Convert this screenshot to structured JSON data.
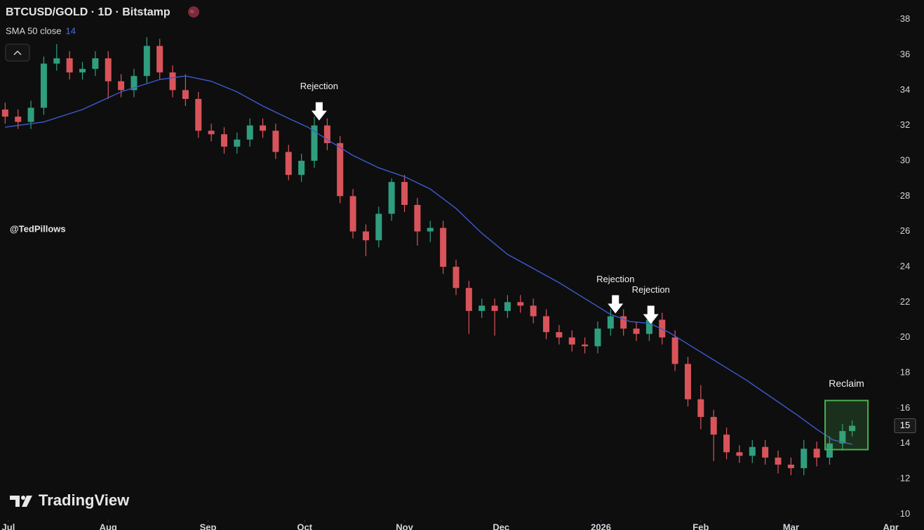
{
  "chart_data": {
    "type": "candlestick",
    "title": "BTCUSD/GOLD · 1D · Bitstamp",
    "watermark": "@TedPillows",
    "brand": "TradingView",
    "up_color": "#2f9e7e",
    "down_color": "#d9545a",
    "xlim": [
      -2.6,
      270.8
    ],
    "ylim": [
      9.1,
      39.1
    ],
    "yticks": [
      10,
      12,
      14,
      16,
      18,
      20,
      22,
      24,
      26,
      28,
      30,
      32,
      34,
      36,
      38
    ],
    "xticks": [
      {
        "value": 0,
        "label": "Jul"
      },
      {
        "value": 31,
        "label": "Aug"
      },
      {
        "value": 62,
        "label": "Sep"
      },
      {
        "value": 92,
        "label": "Oct"
      },
      {
        "value": 123,
        "label": "Nov"
      },
      {
        "value": 153,
        "label": "Dec"
      },
      {
        "value": 184,
        "label": "2026"
      },
      {
        "value": 215,
        "label": "Feb"
      },
      {
        "value": 243,
        "label": "Mar"
      },
      {
        "value": 274,
        "label": "Apr"
      }
    ],
    "last_price": 15,
    "x": [
      -1,
      3,
      7,
      11,
      15,
      19,
      23,
      27,
      31,
      35,
      39,
      43,
      47,
      51,
      55,
      59,
      63,
      67,
      71,
      75,
      79,
      83,
      87,
      91,
      95,
      99,
      103,
      107,
      111,
      115,
      119,
      123,
      127,
      131,
      135,
      139,
      143,
      147,
      151,
      155,
      159,
      163,
      167,
      171,
      175,
      179,
      183,
      187,
      191,
      195,
      199,
      203,
      207,
      211,
      215,
      219,
      223,
      227,
      231,
      235,
      239,
      243,
      247,
      251,
      255,
      259,
      262
    ],
    "open": [
      32.9,
      32.5,
      32.2,
      33,
      35.5,
      35.8,
      35,
      35.2,
      35.8,
      34.5,
      34,
      34.8,
      36.5,
      35,
      34,
      33.5,
      31.7,
      31.5,
      30.8,
      31.2,
      32,
      31.7,
      30.5,
      29.2,
      30,
      32,
      31,
      28,
      26,
      25.5,
      27,
      28.8,
      27.5,
      26,
      26.2,
      24,
      22.8,
      21.5,
      21.8,
      21.5,
      22,
      21.8,
      21.2,
      20.3,
      20,
      19.6,
      19.5,
      20.5,
      21.2,
      20.5,
      20.2,
      21,
      20,
      18.5,
      16.5,
      15.5,
      14.5,
      13.5,
      13.3,
      13.8,
      13.2,
      12.8,
      12.6,
      13.7,
      13.2,
      14,
      14.7
    ],
    "high": [
      33.3,
      32.9,
      33.4,
      35.9,
      36.6,
      36.2,
      35.6,
      36.2,
      36.2,
      34.9,
      35.2,
      37,
      36.9,
      35.4,
      34.9,
      33.9,
      32.1,
      31.9,
      31.6,
      32.4,
      32.4,
      32.1,
      30.9,
      30.4,
      32.5,
      32.4,
      31.4,
      28.4,
      26.4,
      27.4,
      29,
      29.2,
      27.9,
      26.6,
      26.6,
      24.4,
      23.2,
      22.2,
      22.2,
      22.4,
      22.4,
      22.2,
      21.6,
      20.7,
      20.4,
      20,
      20.9,
      21.6,
      21.6,
      20.9,
      21.4,
      21.4,
      20.4,
      18.9,
      17.3,
      15.9,
      14.9,
      13.9,
      14.2,
      14.2,
      13.6,
      13.2,
      14.2,
      14.1,
      14.4,
      15.1,
      15.3
    ],
    "low": [
      32.1,
      31.8,
      31.8,
      32.6,
      35.1,
      34.6,
      34.6,
      34.8,
      33.5,
      33.6,
      33.6,
      34.4,
      34.6,
      33.6,
      33.1,
      31.3,
      31.1,
      30.4,
      30.4,
      30.8,
      31.3,
      30.1,
      28.9,
      28.8,
      29.6,
      30.6,
      27.6,
      25.6,
      24.6,
      25.1,
      26.6,
      27.1,
      25.2,
      25.4,
      23.6,
      22.4,
      20.2,
      21.1,
      20.1,
      21.1,
      21.4,
      20.8,
      19.9,
      19.6,
      19.2,
      19.1,
      19.1,
      20.1,
      20.1,
      19.8,
      19.8,
      19.6,
      18.1,
      16.1,
      14.8,
      13,
      13.1,
      12.9,
      12.9,
      12.8,
      12.3,
      12.2,
      12.2,
      12.7,
      12.8,
      13.6,
      14.4
    ],
    "close": [
      32.5,
      32.2,
      33,
      35.5,
      35.8,
      35,
      35.2,
      35.8,
      34.5,
      34,
      34.8,
      36.5,
      35,
      34,
      33.5,
      31.7,
      31.5,
      30.8,
      31.2,
      32,
      31.7,
      30.5,
      29.2,
      30,
      32,
      31,
      28,
      26,
      25.5,
      27,
      28.8,
      27.5,
      26,
      26.2,
      24,
      22.8,
      21.5,
      21.8,
      21.5,
      22,
      21.8,
      21.2,
      20.3,
      20,
      19.6,
      19.5,
      20.5,
      21.2,
      20.5,
      20.2,
      21,
      20,
      18.5,
      16.5,
      15.5,
      14.5,
      13.5,
      13.3,
      13.8,
      13.2,
      12.8,
      12.6,
      13.7,
      13.2,
      14,
      14.7,
      15
    ],
    "sma": {
      "name": "SMA 50 close",
      "last_value": 14,
      "color": "#3b5bd0",
      "x": [
        -1,
        11,
        23,
        35,
        47,
        55,
        63,
        71,
        79,
        87,
        93,
        99,
        107,
        115,
        123,
        131,
        139,
        147,
        155,
        163,
        171,
        179,
        187,
        193,
        199,
        205,
        213,
        221,
        229,
        237,
        245,
        251,
        256,
        262
      ],
      "values": [
        31.9,
        32.2,
        32.9,
        33.9,
        34.6,
        34.8,
        34.5,
        33.9,
        33.1,
        32.4,
        31.9,
        31.2,
        30.3,
        29.6,
        29.1,
        28.4,
        27.3,
        25.9,
        24.7,
        23.9,
        23.1,
        22.2,
        21.3,
        20.9,
        20.8,
        20.3,
        19.4,
        18.5,
        17.6,
        16.6,
        15.6,
        14.8,
        14.2,
        13.95
      ]
    },
    "annotations": [
      {
        "text": "Rejection",
        "x": 96.5,
        "y": 32.28
      },
      {
        "text": "Rejection",
        "x": 188.5,
        "y": 21.36
      },
      {
        "text": "Rejection",
        "x": 199.5,
        "y": 20.76
      }
    ],
    "highlight": {
      "text": "Reclaim",
      "color": "#4caf50",
      "x0": 253.6,
      "x1": 266.9,
      "y0": 13.65,
      "y1": 16.43
    }
  }
}
